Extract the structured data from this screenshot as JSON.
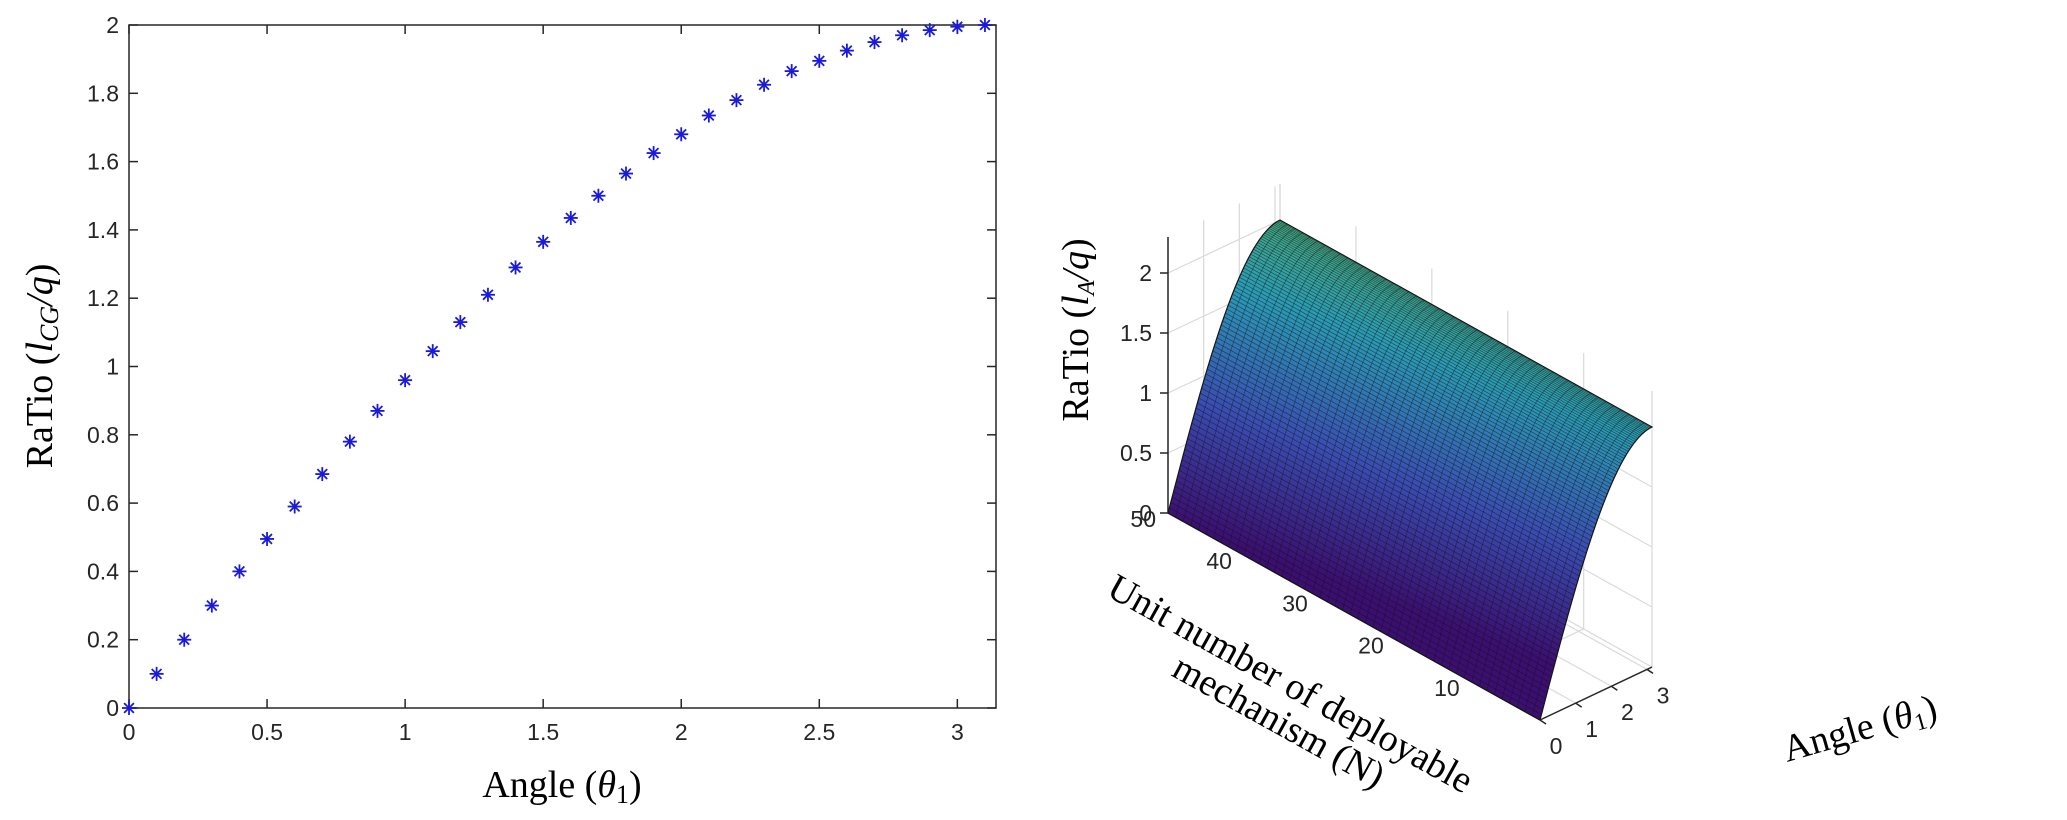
{
  "chart_data": [
    {
      "type": "scatter",
      "title": "",
      "xlabel": {
        "prefix": "Angle (",
        "symbol": "θ",
        "subscript": "1",
        "suffix": ")"
      },
      "ylabel": {
        "prefix": "RaTio (",
        "symbol": "l",
        "subscript": "CG",
        "over": "/q",
        "suffix": ")"
      },
      "xlim": [
        0,
        3.14
      ],
      "ylim": [
        0,
        2
      ],
      "xticks": [
        "0",
        "0.5",
        "1",
        "1.5",
        "2",
        "2.5",
        "3"
      ],
      "yticks": [
        "0",
        "0.2",
        "0.4",
        "0.6",
        "0.8",
        "1",
        "1.2",
        "1.4",
        "1.6",
        "1.8",
        "2"
      ],
      "marker": "*",
      "marker_color": "#1a1adb",
      "x": [
        0,
        0.1,
        0.2,
        0.3,
        0.4,
        0.5,
        0.6,
        0.7,
        0.8,
        0.9,
        1.0,
        1.1,
        1.2,
        1.3,
        1.4,
        1.5,
        1.6,
        1.7,
        1.8,
        1.9,
        2.0,
        2.1,
        2.2,
        2.3,
        2.4,
        2.5,
        2.6,
        2.7,
        2.8,
        2.9,
        3.0,
        3.1
      ],
      "y": [
        0,
        0.1,
        0.2,
        0.3,
        0.4,
        0.495,
        0.59,
        0.685,
        0.78,
        0.87,
        0.96,
        1.045,
        1.13,
        1.21,
        1.29,
        1.365,
        1.435,
        1.5,
        1.565,
        1.625,
        1.68,
        1.735,
        1.78,
        1.825,
        1.865,
        1.895,
        1.925,
        1.95,
        1.97,
        1.985,
        1.995,
        2.0
      ]
    },
    {
      "type": "surface",
      "title": "",
      "xlabel": {
        "prefix": "Angle (",
        "symbol": "θ",
        "subscript": "1",
        "suffix": ")"
      },
      "ylabel": [
        "Unit number of deployable",
        "mechanism (N)"
      ],
      "zlabel": {
        "prefix": "RaTio (",
        "symbol": "l",
        "subscript": "A",
        "over": "/q",
        "suffix": ")"
      },
      "x_range": [
        0,
        3.14
      ],
      "y_range": [
        1,
        50
      ],
      "z_range": [
        0,
        2
      ],
      "xticks": [
        "0",
        "1",
        "2",
        "3"
      ],
      "yticks": [
        "10",
        "20",
        "30",
        "40",
        "50"
      ],
      "zticks": [
        "0",
        "0.5",
        "1",
        "1.5",
        "2"
      ],
      "function": "z = 2*sin(x/2)",
      "colormap": [
        "#3b0f70",
        "#3a4cb0",
        "#2a9bb5",
        "#4fb070",
        "#8a9a30",
        "#a87d2a"
      ]
    }
  ]
}
